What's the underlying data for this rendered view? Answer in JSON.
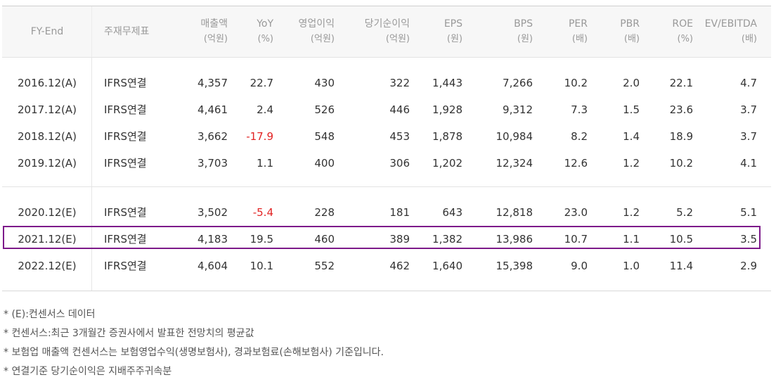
{
  "table": {
    "headers": [
      {
        "label": "FY-End",
        "sub": ""
      },
      {
        "label": "주재무제표",
        "sub": ""
      },
      {
        "label": "매출액",
        "sub": "(억원)"
      },
      {
        "label": "YoY",
        "sub": "(%)"
      },
      {
        "label": "영업이익",
        "sub": "(억원)"
      },
      {
        "label": "당기순이익",
        "sub": "(억원)"
      },
      {
        "label": "EPS",
        "sub": "(원)"
      },
      {
        "label": "BPS",
        "sub": "(원)"
      },
      {
        "label": "PER",
        "sub": "(배)"
      },
      {
        "label": "PBR",
        "sub": "(배)"
      },
      {
        "label": "ROE",
        "sub": "(%)"
      },
      {
        "label": "EV/EBITDA",
        "sub": "(배)"
      }
    ],
    "rows": [
      [
        "2016.12(A)",
        "IFRS연결",
        "4,357",
        "22.7",
        "430",
        "322",
        "1,443",
        "7,266",
        "10.2",
        "2.0",
        "22.1",
        "4.7"
      ],
      [
        "2017.12(A)",
        "IFRS연결",
        "4,461",
        "2.4",
        "526",
        "446",
        "1,928",
        "9,312",
        "7.3",
        "1.5",
        "23.6",
        "3.7"
      ],
      [
        "2018.12(A)",
        "IFRS연결",
        "3,662",
        "-17.9",
        "548",
        "453",
        "1,878",
        "10,984",
        "8.2",
        "1.4",
        "18.9",
        "3.7"
      ],
      [
        "2019.12(A)",
        "IFRS연결",
        "3,703",
        "1.1",
        "400",
        "306",
        "1,202",
        "12,324",
        "12.6",
        "1.2",
        "10.2",
        "4.1"
      ],
      [
        "2020.12(E)",
        "IFRS연결",
        "3,502",
        "-5.4",
        "228",
        "181",
        "643",
        "12,818",
        "23.0",
        "1.2",
        "5.2",
        "5.1"
      ],
      [
        "2021.12(E)",
        "IFRS연결",
        "4,183",
        "19.5",
        "460",
        "389",
        "1,382",
        "13,986",
        "10.7",
        "1.1",
        "10.5",
        "3.5"
      ],
      [
        "2022.12(E)",
        "IFRS연결",
        "4,604",
        "10.1",
        "552",
        "462",
        "1,640",
        "15,398",
        "9.0",
        "1.0",
        "11.4",
        "2.9"
      ]
    ],
    "highlighted_row": "2021.12(E)"
  },
  "notes": [
    "* (E):컨센서스 데이터",
    "* 컨센서스:최근 3개월간 증권사에서 발표한 전망치의 평균값",
    "* 보험업 매출액 컨센서스는 보험영업수익(생명보험사), 경과보험료(손해보험사) 기준입니다.",
    "* 연결기준 당기순이익은 지배주주귀속분"
  ],
  "colors": {
    "negative": "#e22323",
    "highlight_border": "#7d1a8a",
    "header_bg": "#f7f7f7"
  }
}
